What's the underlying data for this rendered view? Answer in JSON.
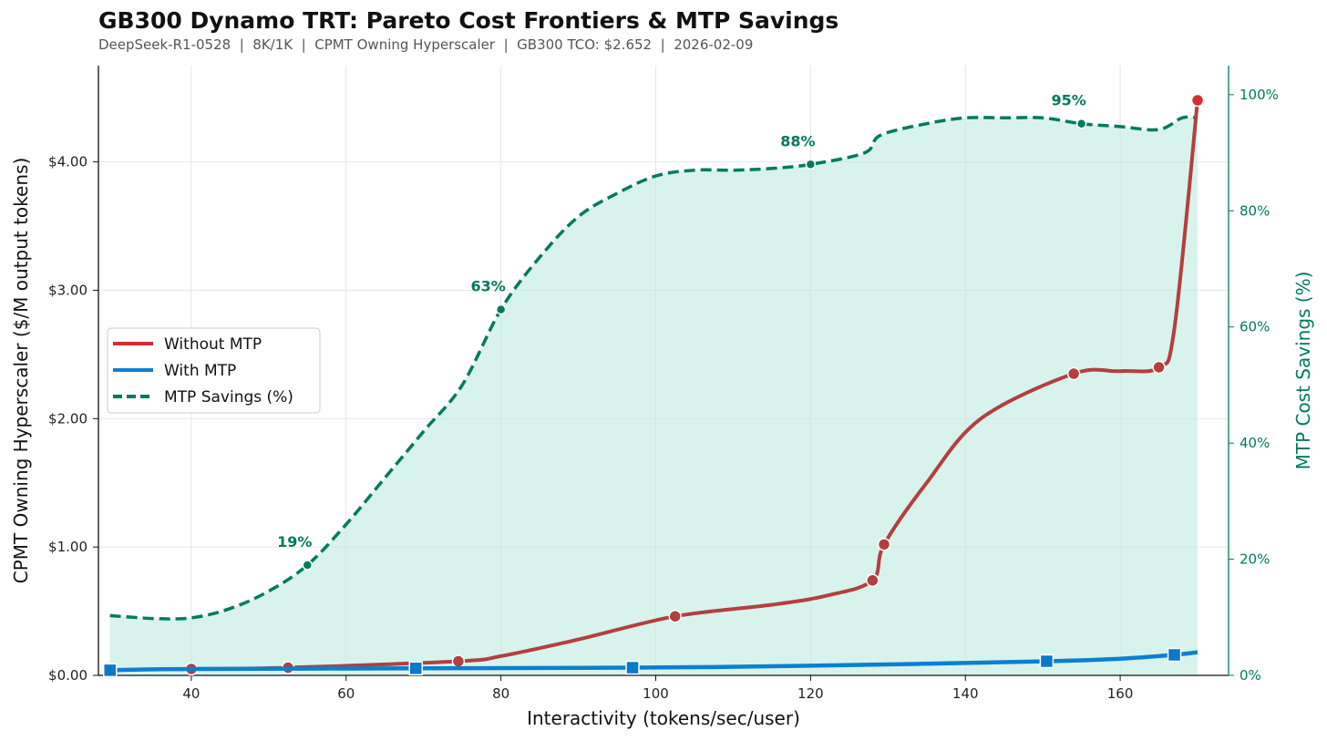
{
  "title": "GB300 Dynamo TRT: Pareto Cost Frontiers & MTP Savings",
  "subtitle": "DeepSeek-R1-0528  |  8K/1K  |  CPMT Owning Hyperscaler  |  GB300 TCO: $2.652  |  2026-02-09",
  "colors": {
    "without_mtp": "#d32f2f",
    "without_mtp_line": "#b33f3f",
    "with_mtp": "#0c7fd1",
    "with_mtp_marker": "#0a79c8",
    "savings": "#007a5e",
    "fill": "#c3ece2"
  },
  "chart_data": {
    "type": "line",
    "title": "GB300 Dynamo TRT: Pareto Cost Frontiers & MTP Savings",
    "xlabel": "Interactivity (tokens/sec/user)",
    "ylabel": "CPMT Owning Hyperscaler ($/M output tokens)",
    "y2label": "MTP Cost Savings (%)",
    "xlim": [
      28,
      174
    ],
    "ylim": [
      0,
      4.75
    ],
    "y2lim": [
      0,
      105
    ],
    "x_ticks": [
      "40",
      "60",
      "80",
      "100",
      "120",
      "140",
      "160"
    ],
    "x_tick_values": [
      40,
      60,
      80,
      100,
      120,
      140,
      160
    ],
    "y_ticks": [
      "$0.00",
      "$1.00",
      "$2.00",
      "$3.00",
      "$4.00"
    ],
    "y_tick_values": [
      0,
      1,
      2,
      3,
      4
    ],
    "y2_ticks": [
      "0%",
      "20%",
      "40%",
      "60%",
      "80%",
      "100%"
    ],
    "y2_tick_values": [
      0,
      20,
      40,
      60,
      80,
      100
    ],
    "grid": true,
    "legend_position": "center-left",
    "series": [
      {
        "name": "Without MTP",
        "axis": "left",
        "curve": [
          [
            40,
            0.05
          ],
          [
            52.5,
            0.06
          ],
          [
            74.5,
            0.11
          ],
          [
            80,
            0.15
          ],
          [
            90,
            0.28
          ],
          [
            102.5,
            0.46
          ],
          [
            115,
            0.55
          ],
          [
            122,
            0.62
          ],
          [
            128,
            0.74
          ],
          [
            129.5,
            1.02
          ],
          [
            135,
            1.5
          ],
          [
            142,
            2.0
          ],
          [
            154,
            2.35
          ],
          [
            160,
            2.37
          ],
          [
            165,
            2.4
          ],
          [
            167,
            2.7
          ],
          [
            170,
            4.48
          ]
        ],
        "markers": [
          [
            40,
            0.05
          ],
          [
            52.5,
            0.06
          ],
          [
            74.5,
            0.11
          ],
          [
            102.5,
            0.46
          ],
          [
            128,
            0.74
          ],
          [
            129.5,
            1.02
          ],
          [
            154,
            2.35
          ],
          [
            165,
            2.4
          ],
          [
            170,
            4.48
          ]
        ]
      },
      {
        "name": "With MTP",
        "axis": "left",
        "curve": [
          [
            29.5,
            0.04
          ],
          [
            40,
            0.05
          ],
          [
            69,
            0.055
          ],
          [
            97,
            0.06
          ],
          [
            120,
            0.075
          ],
          [
            150.5,
            0.11
          ],
          [
            160,
            0.13
          ],
          [
            167,
            0.16
          ],
          [
            170,
            0.18
          ]
        ],
        "markers": [
          [
            29.5,
            0.04
          ],
          [
            69,
            0.055
          ],
          [
            97,
            0.06
          ],
          [
            150.5,
            0.11
          ],
          [
            167,
            0.16
          ]
        ]
      },
      {
        "name": "MTP Savings (%)",
        "axis": "right",
        "curve": [
          [
            29.5,
            10.3
          ],
          [
            35,
            9.8
          ],
          [
            40,
            9.9
          ],
          [
            45,
            11.5
          ],
          [
            50,
            14.5
          ],
          [
            55,
            19.0
          ],
          [
            60,
            26
          ],
          [
            65,
            34
          ],
          [
            70,
            42
          ],
          [
            75,
            50
          ],
          [
            80,
            63
          ],
          [
            85,
            72
          ],
          [
            90,
            79
          ],
          [
            95,
            83
          ],
          [
            100,
            86
          ],
          [
            105,
            87
          ],
          [
            110,
            87
          ],
          [
            115,
            87.3
          ],
          [
            120,
            88
          ],
          [
            127,
            90
          ],
          [
            129,
            93
          ],
          [
            135,
            95
          ],
          [
            140,
            96
          ],
          [
            145,
            96
          ],
          [
            150,
            96
          ],
          [
            155,
            95
          ],
          [
            160,
            94.5
          ],
          [
            165,
            94
          ],
          [
            168,
            96
          ],
          [
            170,
            96
          ]
        ],
        "markers": [
          [
            55,
            19.0
          ],
          [
            80,
            63
          ],
          [
            120,
            88
          ],
          [
            155,
            95
          ]
        ]
      }
    ],
    "annotations": [
      {
        "text": "19%",
        "x": 55,
        "y": 19.0
      },
      {
        "text": "63%",
        "x": 80,
        "y": 63
      },
      {
        "text": "88%",
        "x": 120,
        "y": 88
      },
      {
        "text": "95%",
        "x": 155,
        "y": 95
      }
    ]
  }
}
